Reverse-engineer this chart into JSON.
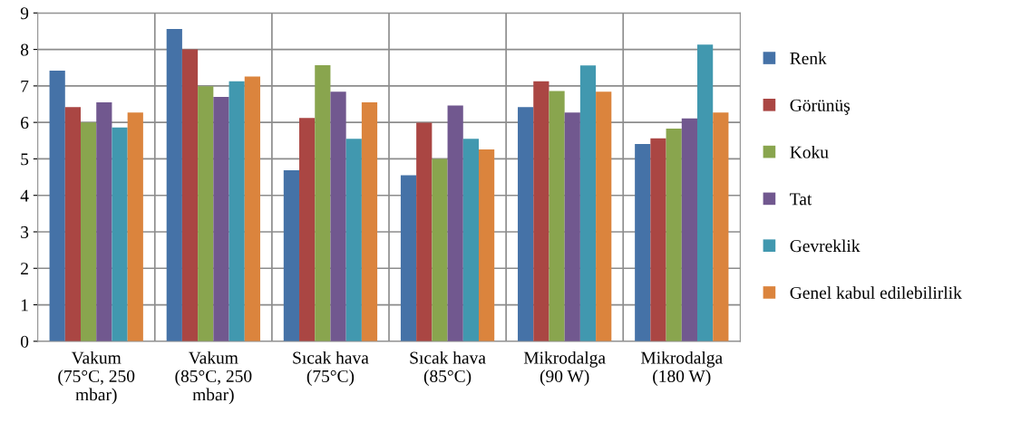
{
  "chart_data": {
    "type": "bar",
    "categories": [
      "Vakum\n(75°C, 250\nmbar)",
      "Vakum\n(85°C, 250\nmbar)",
      "Sıcak hava\n(75°C)",
      "Sıcak hava\n(85°C)",
      "Mikrodalga\n(90 W)",
      "Mikrodalga\n(180 W)"
    ],
    "series": [
      {
        "name": "Renk",
        "color": "#4572a7",
        "values": [
          7.42,
          8.56,
          4.69,
          4.55,
          6.42,
          5.41
        ]
      },
      {
        "name": "Görünüş",
        "color": "#aa4643",
        "values": [
          6.42,
          8.0,
          6.12,
          5.99,
          7.13,
          5.56
        ]
      },
      {
        "name": "Koku",
        "color": "#89a54e",
        "values": [
          6.0,
          6.99,
          7.57,
          5.0,
          6.86,
          5.83
        ]
      },
      {
        "name": "Tat",
        "color": "#71588f",
        "values": [
          6.55,
          6.7,
          6.84,
          6.46,
          6.27,
          6.11
        ]
      },
      {
        "name": "Gevreklik",
        "color": "#4198af",
        "values": [
          5.86,
          7.13,
          5.55,
          5.55,
          7.56,
          8.13
        ]
      },
      {
        "name": "Genel kabul edilebilirlik",
        "color": "#db843d",
        "values": [
          6.27,
          7.26,
          6.55,
          5.26,
          6.84,
          6.27
        ]
      }
    ],
    "ylim": [
      0,
      9
    ],
    "yticks": [
      0,
      1,
      2,
      3,
      4,
      5,
      6,
      7,
      8,
      9
    ],
    "grid": true,
    "legend": "right"
  }
}
